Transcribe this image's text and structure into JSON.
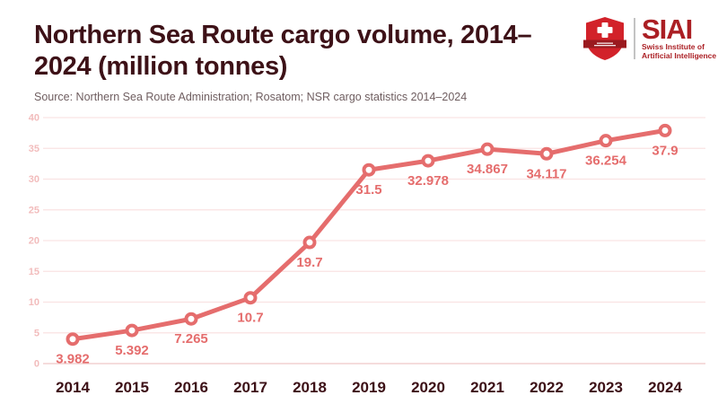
{
  "header": {
    "title_line1": "Northern Sea Route cargo volume, 2014–",
    "title_line2": "2024 (million tonnes)",
    "source": "Source: Northern Sea Route Administration; Rosatom; NSR cargo statistics 2014–2024"
  },
  "logo": {
    "acronym": "SIAI",
    "subtitle_line1": "Swiss Institute of",
    "subtitle_line2": "Artificial Intelligence",
    "brand_red": "#ab1f24",
    "shield_red": "#d2222a",
    "ribbon_red": "#9a1a1f"
  },
  "chart_data": {
    "type": "line",
    "title": "Northern Sea Route cargo volume, 2014–2024 (million tonnes)",
    "xlabel": "",
    "ylabel": "",
    "x": [
      "2014",
      "2015",
      "2016",
      "2017",
      "2018",
      "2019",
      "2020",
      "2021",
      "2022",
      "2023",
      "2024"
    ],
    "values": [
      3.982,
      5.392,
      7.265,
      10.7,
      19.7,
      31.5,
      32.978,
      34.867,
      34.117,
      36.254,
      37.9
    ],
    "labels": [
      "3.982",
      "5.392",
      "7.265",
      "10.7",
      "19.7",
      "31.5",
      "32.978",
      "34.867",
      "34.117",
      "36.254",
      "37.9"
    ],
    "ylim": [
      0,
      40
    ],
    "yticks": [
      0,
      5,
      10,
      15,
      20,
      25,
      30,
      35,
      40
    ],
    "grid": true,
    "legend": false,
    "colors": {
      "line": "#e56d6d",
      "marker_fill": "#ffffff",
      "label": "#e56d6d",
      "tick": "#f2bcbc",
      "grid": "#fae3e3",
      "axis_line": "#efc7c7",
      "year": "#3d1117"
    }
  }
}
